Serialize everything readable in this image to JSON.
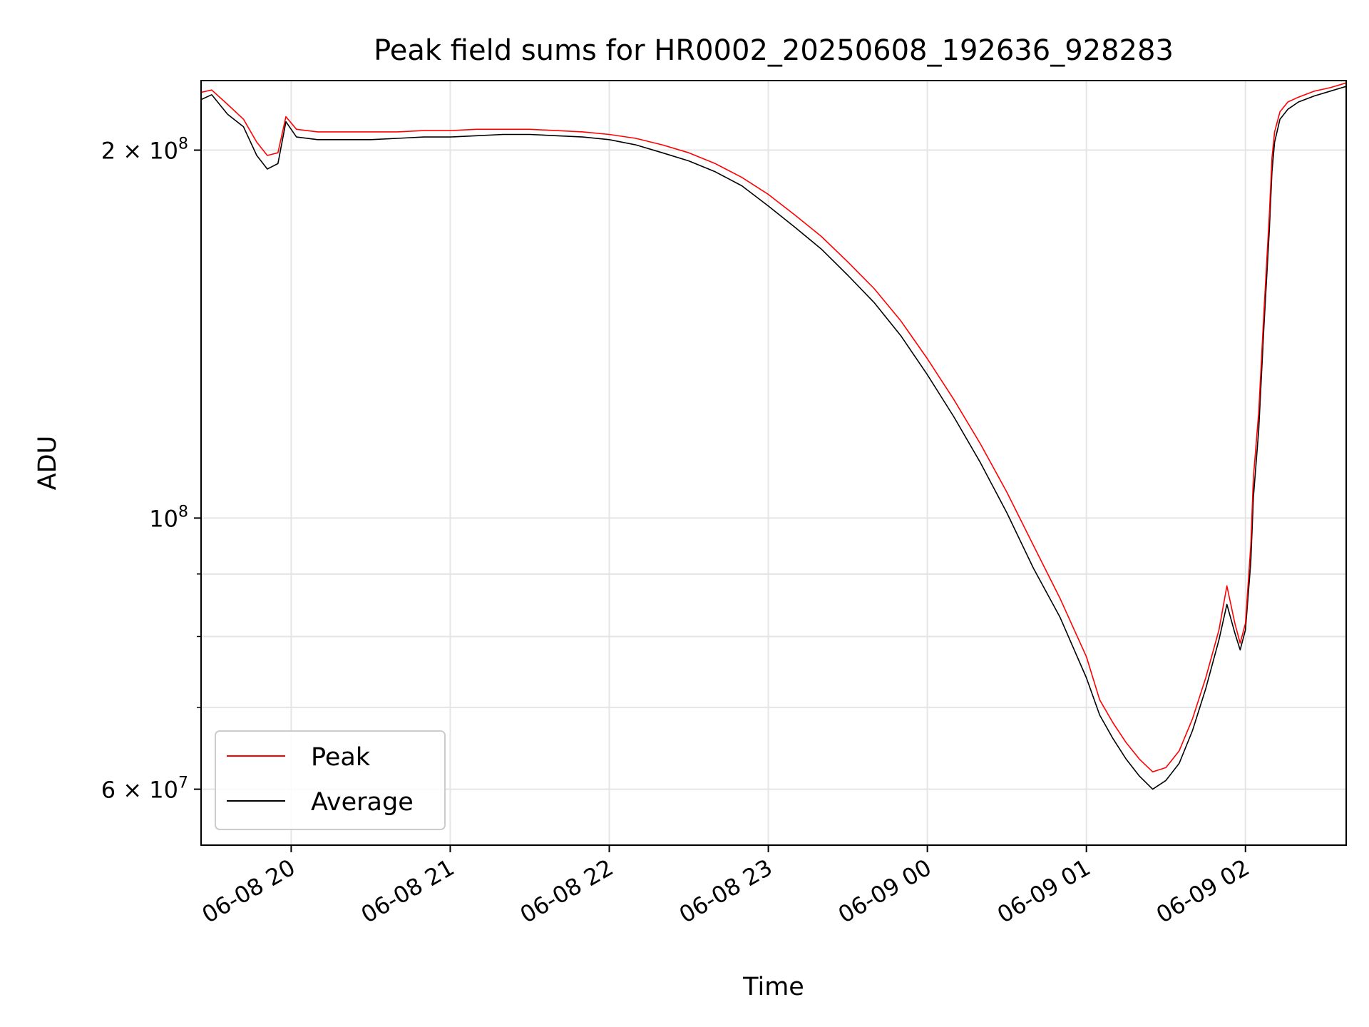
{
  "chart_data": {
    "type": "line",
    "title": "Peak field sums for HR0002_20250608_192636_928283",
    "xlabel": "Time",
    "ylabel": "ADU",
    "yscale": "log",
    "xlim": [
      "2025-06-08 19:26",
      "2025-06-09 02:38"
    ],
    "ylim": [
      54000000,
      228000000
    ],
    "grid": true,
    "legend": "lower-left",
    "x_ticks": [
      {
        "t": "2025-06-08 20:00",
        "label": "06-08 20"
      },
      {
        "t": "2025-06-08 21:00",
        "label": "06-08 21"
      },
      {
        "t": "2025-06-08 22:00",
        "label": "06-08 22"
      },
      {
        "t": "2025-06-08 23:00",
        "label": "06-08 23"
      },
      {
        "t": "2025-06-09 00:00",
        "label": "06-09 00"
      },
      {
        "t": "2025-06-09 01:00",
        "label": "06-09 01"
      },
      {
        "t": "2025-06-09 02:00",
        "label": "06-09 02"
      }
    ],
    "y_ticks_major": [
      {
        "v": 60000000,
        "base": "6 × 10",
        "exp": "7"
      },
      {
        "v": 100000000,
        "base": "10",
        "exp": "8"
      },
      {
        "v": 200000000,
        "base": "2 × 10",
        "exp": "8"
      }
    ],
    "y_ticks_minor": [
      70000000,
      80000000,
      90000000
    ],
    "series": [
      {
        "name": "Peak",
        "color": "#ff0000",
        "points": [
          [
            "2025-06-08 19:26",
            223000000
          ],
          [
            "2025-06-08 19:30",
            224000000
          ],
          [
            "2025-06-08 19:36",
            218000000
          ],
          [
            "2025-06-08 19:42",
            212000000
          ],
          [
            "2025-06-08 19:47",
            203000000
          ],
          [
            "2025-06-08 19:51",
            198000000
          ],
          [
            "2025-06-08 19:55",
            199000000
          ],
          [
            "2025-06-08 19:58",
            213000000
          ],
          [
            "2025-06-08 20:02",
            208000000
          ],
          [
            "2025-06-08 20:10",
            207000000
          ],
          [
            "2025-06-08 20:20",
            207000000
          ],
          [
            "2025-06-08 20:30",
            207000000
          ],
          [
            "2025-06-08 20:40",
            207000000
          ],
          [
            "2025-06-08 20:50",
            207500000
          ],
          [
            "2025-06-08 21:00",
            207500000
          ],
          [
            "2025-06-08 21:10",
            208000000
          ],
          [
            "2025-06-08 21:20",
            208000000
          ],
          [
            "2025-06-08 21:30",
            208000000
          ],
          [
            "2025-06-08 21:40",
            207500000
          ],
          [
            "2025-06-08 21:50",
            207000000
          ],
          [
            "2025-06-08 22:00",
            206000000
          ],
          [
            "2025-06-08 22:10",
            204500000
          ],
          [
            "2025-06-08 22:20",
            202000000
          ],
          [
            "2025-06-08 22:30",
            199000000
          ],
          [
            "2025-06-08 22:40",
            195000000
          ],
          [
            "2025-06-08 22:50",
            190000000
          ],
          [
            "2025-06-08 23:00",
            184000000
          ],
          [
            "2025-06-08 23:10",
            177000000
          ],
          [
            "2025-06-08 23:20",
            170000000
          ],
          [
            "2025-06-08 23:30",
            162000000
          ],
          [
            "2025-06-08 23:40",
            154000000
          ],
          [
            "2025-06-08 23:50",
            145000000
          ],
          [
            "2025-06-09 00:00",
            135000000
          ],
          [
            "2025-06-09 00:10",
            125000000
          ],
          [
            "2025-06-09 00:20",
            115000000
          ],
          [
            "2025-06-09 00:30",
            105000000
          ],
          [
            "2025-06-09 00:40",
            95000000
          ],
          [
            "2025-06-09 00:50",
            86000000
          ],
          [
            "2025-06-09 01:00",
            77000000
          ],
          [
            "2025-06-09 01:05",
            71000000
          ],
          [
            "2025-06-09 01:10",
            68000000
          ],
          [
            "2025-06-09 01:15",
            65500000
          ],
          [
            "2025-06-09 01:20",
            63500000
          ],
          [
            "2025-06-09 01:25",
            62000000
          ],
          [
            "2025-06-09 01:30",
            62500000
          ],
          [
            "2025-06-09 01:35",
            64500000
          ],
          [
            "2025-06-09 01:40",
            68500000
          ],
          [
            "2025-06-09 01:45",
            74000000
          ],
          [
            "2025-06-09 01:50",
            81000000
          ],
          [
            "2025-06-09 01:53",
            88000000
          ],
          [
            "2025-06-09 01:56",
            82000000
          ],
          [
            "2025-06-09 01:58",
            79000000
          ],
          [
            "2025-06-09 02:00",
            82000000
          ],
          [
            "2025-06-09 02:02",
            95000000
          ],
          [
            "2025-06-09 02:03",
            108000000
          ],
          [
            "2025-06-09 02:05",
            122000000
          ],
          [
            "2025-06-09 02:07",
            148000000
          ],
          [
            "2025-06-09 02:09",
            177000000
          ],
          [
            "2025-06-09 02:10",
            197000000
          ],
          [
            "2025-06-09 02:11",
            207000000
          ],
          [
            "2025-06-09 02:13",
            215000000
          ],
          [
            "2025-06-09 02:16",
            219000000
          ],
          [
            "2025-06-09 02:20",
            221000000
          ],
          [
            "2025-06-09 02:26",
            223500000
          ],
          [
            "2025-06-09 02:32",
            225000000
          ],
          [
            "2025-06-09 02:38",
            227000000
          ]
        ]
      },
      {
        "name": "Average",
        "color": "#000000",
        "points": [
          [
            "2025-06-08 19:26",
            220000000
          ],
          [
            "2025-06-08 19:30",
            222000000
          ],
          [
            "2025-06-08 19:36",
            214000000
          ],
          [
            "2025-06-08 19:42",
            209000000
          ],
          [
            "2025-06-08 19:47",
            198000000
          ],
          [
            "2025-06-08 19:51",
            193000000
          ],
          [
            "2025-06-08 19:55",
            195000000
          ],
          [
            "2025-06-08 19:58",
            211000000
          ],
          [
            "2025-06-08 20:02",
            205000000
          ],
          [
            "2025-06-08 20:10",
            204000000
          ],
          [
            "2025-06-08 20:20",
            204000000
          ],
          [
            "2025-06-08 20:30",
            204000000
          ],
          [
            "2025-06-08 20:40",
            204500000
          ],
          [
            "2025-06-08 20:50",
            205000000
          ],
          [
            "2025-06-08 21:00",
            205000000
          ],
          [
            "2025-06-08 21:10",
            205500000
          ],
          [
            "2025-06-08 21:20",
            206000000
          ],
          [
            "2025-06-08 21:30",
            206000000
          ],
          [
            "2025-06-08 21:40",
            205500000
          ],
          [
            "2025-06-08 21:50",
            205000000
          ],
          [
            "2025-06-08 22:00",
            204000000
          ],
          [
            "2025-06-08 22:10",
            202000000
          ],
          [
            "2025-06-08 22:20",
            199000000
          ],
          [
            "2025-06-08 22:30",
            196000000
          ],
          [
            "2025-06-08 22:40",
            192000000
          ],
          [
            "2025-06-08 22:50",
            187000000
          ],
          [
            "2025-06-08 23:00",
            180000000
          ],
          [
            "2025-06-08 23:10",
            173000000
          ],
          [
            "2025-06-08 23:20",
            166000000
          ],
          [
            "2025-06-08 23:30",
            158000000
          ],
          [
            "2025-06-08 23:40",
            150000000
          ],
          [
            "2025-06-08 23:50",
            141000000
          ],
          [
            "2025-06-09 00:00",
            131000000
          ],
          [
            "2025-06-09 00:10",
            121000000
          ],
          [
            "2025-06-09 00:20",
            111000000
          ],
          [
            "2025-06-09 00:30",
            101000000
          ],
          [
            "2025-06-09 00:40",
            91000000
          ],
          [
            "2025-06-09 00:50",
            83000000
          ],
          [
            "2025-06-09 01:00",
            74000000
          ],
          [
            "2025-06-09 01:05",
            69000000
          ],
          [
            "2025-06-09 01:10",
            66000000
          ],
          [
            "2025-06-09 01:15",
            63500000
          ],
          [
            "2025-06-09 01:20",
            61500000
          ],
          [
            "2025-06-09 01:25",
            60000000
          ],
          [
            "2025-06-09 01:30",
            61000000
          ],
          [
            "2025-06-09 01:35",
            63000000
          ],
          [
            "2025-06-09 01:40",
            67000000
          ],
          [
            "2025-06-09 01:45",
            72500000
          ],
          [
            "2025-06-09 01:50",
            79500000
          ],
          [
            "2025-06-09 01:53",
            85000000
          ],
          [
            "2025-06-09 01:56",
            80500000
          ],
          [
            "2025-06-09 01:58",
            78000000
          ],
          [
            "2025-06-09 02:00",
            81000000
          ],
          [
            "2025-06-09 02:02",
            92000000
          ],
          [
            "2025-06-09 02:03",
            104000000
          ],
          [
            "2025-06-09 02:05",
            118000000
          ],
          [
            "2025-06-09 02:07",
            144000000
          ],
          [
            "2025-06-09 02:09",
            172000000
          ],
          [
            "2025-06-09 02:10",
            192000000
          ],
          [
            "2025-06-09 02:11",
            203000000
          ],
          [
            "2025-06-09 02:13",
            212000000
          ],
          [
            "2025-06-09 02:16",
            216000000
          ],
          [
            "2025-06-09 02:20",
            219000000
          ],
          [
            "2025-06-09 02:26",
            221500000
          ],
          [
            "2025-06-09 02:32",
            223500000
          ],
          [
            "2025-06-09 02:38",
            225500000
          ]
        ]
      }
    ]
  }
}
